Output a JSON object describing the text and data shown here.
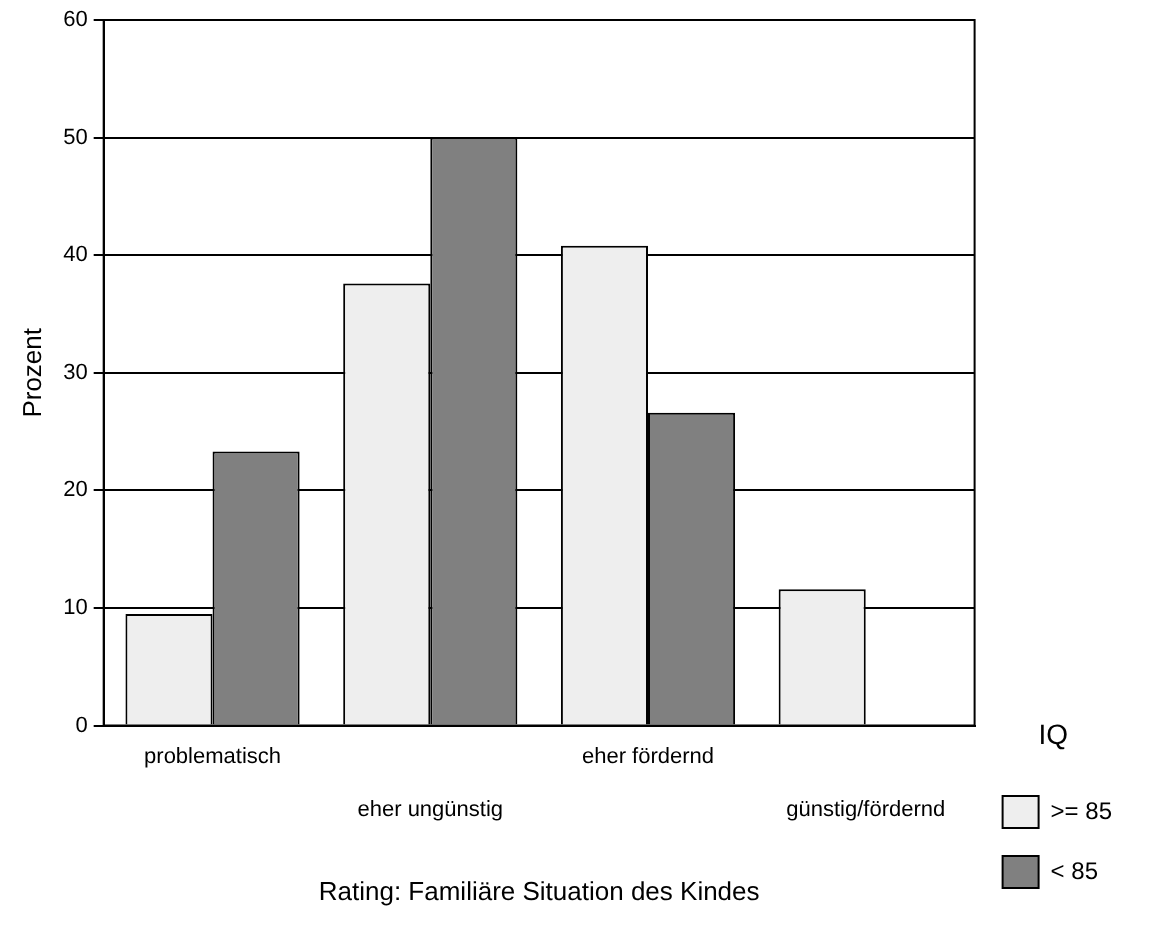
{
  "chart_data": {
    "type": "bar",
    "xlabel": "Rating: Familiäre Situation des Kindes",
    "ylabel": "Prozent",
    "legend_title": "IQ",
    "categories": [
      "problematisch",
      "eher ungünstig",
      "eher fördernd",
      "günstig/fördernd"
    ],
    "series": [
      {
        "name": ">= 85",
        "color": "#eeeeee",
        "values": [
          9.5,
          37.6,
          40.8,
          11.6
        ]
      },
      {
        "name": "< 85",
        "color": "#808080",
        "values": [
          23.3,
          50,
          26.6,
          0
        ]
      }
    ],
    "ylim": [
      0,
      60
    ],
    "yticks": [
      0,
      10,
      20,
      30,
      40,
      50,
      60
    ],
    "grid": "y",
    "legend": "right"
  }
}
